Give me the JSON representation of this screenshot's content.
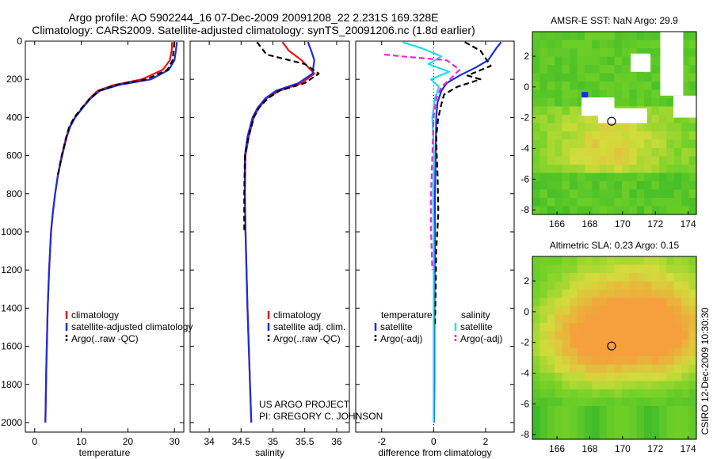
{
  "header": {
    "line1": "Argo profile: AO 5902244_16 07-Dec-2009 20091208_22 2.231S 169.328E",
    "line2": "Climatology: CARS2009. Satellite-adjusted climatology: synTS_20091206.nc (1.8d earlier)"
  },
  "side_label": "CSIRO 12-Dec-2009 10:30:30",
  "colors": {
    "red": "#ee1111",
    "blue": "#1a2de0",
    "black": "#000000",
    "cyan": "#19e0e8",
    "magenta": "#ee22dd"
  },
  "chart_data": [
    {
      "type": "line",
      "title": "",
      "xlabel": "temperature",
      "ylabel": "",
      "xlim": [
        -2,
        32
      ],
      "ylim": [
        2050,
        0
      ],
      "xticks": [
        "0",
        "10",
        "20",
        "30"
      ],
      "xtick_values": [
        0,
        10,
        20,
        30
      ],
      "yticks": [
        "0",
        "200",
        "400",
        "600",
        "800",
        "1000",
        "1200",
        "1400",
        "1600",
        "1800",
        "2000"
      ],
      "ytick_values": [
        0,
        200,
        400,
        600,
        800,
        1000,
        1200,
        1400,
        1600,
        1800,
        2000
      ],
      "legend": {
        "position": "lower-right",
        "entries": [
          "climatology",
          "satellite-adjusted climatology",
          "Argo(..raw -QC)"
        ]
      },
      "series": [
        {
          "name": "climatology",
          "color": "red",
          "dash": false,
          "x": [
            29.5,
            29.4,
            29.0,
            27.5,
            23.0,
            17.0,
            13.5,
            11.8,
            10.2,
            8.6,
            7.5,
            6.8,
            5.8,
            5.0,
            4.4,
            3.9,
            3.5,
            3.1,
            2.8,
            2.5,
            2.3
          ],
          "y": [
            5,
            50,
            100,
            150,
            200,
            230,
            260,
            300,
            350,
            400,
            450,
            500,
            600,
            700,
            800,
            900,
            1000,
            1200,
            1400,
            1700,
            2000
          ]
        },
        {
          "name": "satellite-adjusted climatology",
          "color": "blue",
          "dash": false,
          "x": [
            30.5,
            30.3,
            30.0,
            28.8,
            25.0,
            18.0,
            14.0,
            12.0,
            10.3,
            8.7,
            7.6,
            6.9,
            5.9,
            5.0,
            4.4,
            3.9,
            3.5,
            3.1,
            2.8,
            2.5,
            2.3
          ],
          "y": [
            5,
            50,
            100,
            150,
            200,
            230,
            260,
            300,
            350,
            400,
            450,
            500,
            600,
            700,
            800,
            900,
            1000,
            1200,
            1400,
            1700,
            2000
          ]
        },
        {
          "name": "Argo(..raw -QC)",
          "color": "black",
          "dash": true,
          "x": [
            30.0,
            29.8,
            29.6,
            28.5,
            24.0,
            17.5,
            13.8,
            11.9,
            10.1,
            8.5,
            7.4,
            6.8,
            5.8,
            5.0
          ],
          "y": [
            5,
            50,
            100,
            150,
            200,
            230,
            260,
            300,
            350,
            400,
            450,
            500,
            600,
            700
          ]
        }
      ]
    },
    {
      "type": "line",
      "title": "",
      "xlabel": "salinity",
      "ylabel": "",
      "xlim": [
        33.7,
        36.2
      ],
      "ylim": [
        2050,
        0
      ],
      "xticks": [
        "34",
        "34.5",
        "35",
        "35.5",
        "36"
      ],
      "xtick_values": [
        34,
        34.5,
        35,
        35.5,
        36
      ],
      "legend": {
        "position": "lower-right",
        "entries": [
          "climatology",
          "satellite adj. clim.",
          "Argo(..raw -QC)"
        ]
      },
      "annotation": {
        "line1": "US ARGO PROJECT",
        "line2": "PI: GREGORY C. JOHNSON"
      },
      "series": [
        {
          "name": "climatology",
          "color": "red",
          "dash": false,
          "x": [
            35.15,
            35.25,
            35.45,
            35.65,
            35.45,
            35.1,
            34.9,
            34.78,
            34.7,
            34.62,
            34.57,
            34.56,
            34.57,
            34.6,
            34.64,
            34.66
          ],
          "y": [
            5,
            50,
            100,
            170,
            220,
            260,
            300,
            350,
            400,
            500,
            600,
            800,
            1000,
            1400,
            1800,
            2000
          ]
        },
        {
          "name": "satellite adj. clim.",
          "color": "blue",
          "dash": false,
          "x": [
            35.55,
            35.6,
            35.65,
            35.62,
            35.4,
            35.05,
            34.88,
            34.76,
            34.68,
            34.6,
            34.56,
            34.56,
            34.57,
            34.6,
            34.64,
            34.66
          ],
          "y": [
            5,
            50,
            100,
            170,
            220,
            260,
            300,
            350,
            400,
            500,
            600,
            800,
            1000,
            1400,
            1800,
            2000
          ]
        },
        {
          "name": "Argo(..raw -QC)",
          "color": "black",
          "dash": true,
          "x": [
            34.75,
            34.9,
            35.5,
            35.72,
            35.5,
            35.1,
            34.92,
            34.78,
            34.7,
            34.62,
            34.56,
            34.55,
            34.55
          ],
          "y": [
            5,
            70,
            120,
            170,
            220,
            260,
            300,
            350,
            400,
            500,
            600,
            800,
            1000
          ]
        }
      ]
    },
    {
      "type": "line",
      "title": "",
      "xlabel": "difference from climatology",
      "ylabel": "",
      "xlim": [
        -3,
        3.1
      ],
      "ylim": [
        2050,
        0
      ],
      "xticks": [
        "-2",
        "0",
        "2"
      ],
      "xtick_values": [
        -2,
        0,
        2
      ],
      "legend": {
        "position": "lower-center",
        "entries": [
          "temperature",
          "satellite",
          "Argo(-adj)",
          "salinity",
          "satellite",
          "Argo(-adj)"
        ]
      },
      "series": [
        {
          "name": "temperature satellite",
          "color": "blue",
          "dash": false,
          "x": [
            2.6,
            2.4,
            2.1,
            1.6,
            1.0,
            0.5,
            0.3,
            0.15,
            0.1,
            0.08,
            0.05,
            0.05,
            0.04,
            0.03,
            0.03,
            0.02
          ],
          "y": [
            5,
            40,
            100,
            140,
            180,
            220,
            260,
            320,
            400,
            600,
            800,
            1000,
            1200,
            1500,
            1800,
            2000
          ]
        },
        {
          "name": "temperature Argo(-adj)",
          "color": "black",
          "dash": true,
          "x": [
            1.2,
            1.8,
            2.2,
            1.3,
            1.8,
            0.9,
            0.4,
            0.3,
            0.18,
            0.1,
            0.12,
            0.15,
            0.18,
            0.1,
            0.08,
            0.05
          ],
          "y": [
            5,
            50,
            130,
            180,
            200,
            240,
            280,
            330,
            400,
            500,
            600,
            700,
            900,
            1100,
            1300,
            1500
          ]
        },
        {
          "name": "salinity satellite",
          "color": "cyan",
          "dash": false,
          "x": [
            -1.2,
            -0.4,
            0.3,
            -0.2,
            0.6,
            -0.1,
            0.2,
            0.05,
            -0.05,
            0.02,
            -0.02,
            0.0,
            0.0,
            0.0,
            0.0,
            0.0
          ],
          "y": [
            5,
            40,
            80,
            120,
            160,
            200,
            240,
            300,
            400,
            600,
            800,
            1000,
            1200,
            1500,
            1800,
            2000
          ]
        },
        {
          "name": "salinity Argo(-adj)",
          "color": "magenta",
          "dash": true,
          "x": [
            -1.9,
            -1.2,
            0.5,
            1.0,
            0.7,
            0.3,
            0.1,
            0.0,
            -0.05,
            -0.1,
            -0.1,
            -0.05
          ],
          "y": [
            70,
            80,
            100,
            150,
            190,
            240,
            300,
            400,
            600,
            800,
            1000,
            1200
          ]
        }
      ]
    },
    {
      "type": "heatmap",
      "title": "AMSR-E SST: NaN Argo: 29.9",
      "xlim": [
        164.5,
        174.5
      ],
      "ylim": [
        -8.3,
        3.6
      ],
      "xticks": [
        "166",
        "168",
        "170",
        "172",
        "174"
      ],
      "xtick_values": [
        166,
        168,
        170,
        172,
        174
      ],
      "yticks": [
        "2",
        "0",
        "-2",
        "-4",
        "-6",
        "-8"
      ],
      "ytick_values": [
        2,
        0,
        -2,
        -4,
        -6,
        -8
      ],
      "marker": {
        "lon": 169.33,
        "lat": -2.23
      }
    },
    {
      "type": "heatmap",
      "title": "Altimetric SLA: 0.23 Argo: 0.15",
      "xlim": [
        164.5,
        174.5
      ],
      "ylim": [
        -8.3,
        3.6
      ],
      "xticks": [
        "166",
        "168",
        "170",
        "172",
        "174"
      ],
      "xtick_values": [
        166,
        168,
        170,
        172,
        174
      ],
      "yticks": [
        "2",
        "0",
        "-2",
        "-4",
        "-6",
        "-8"
      ],
      "ytick_values": [
        2,
        0,
        -2,
        -4,
        -6,
        -8
      ],
      "marker": {
        "lon": 169.33,
        "lat": -2.23
      }
    }
  ]
}
